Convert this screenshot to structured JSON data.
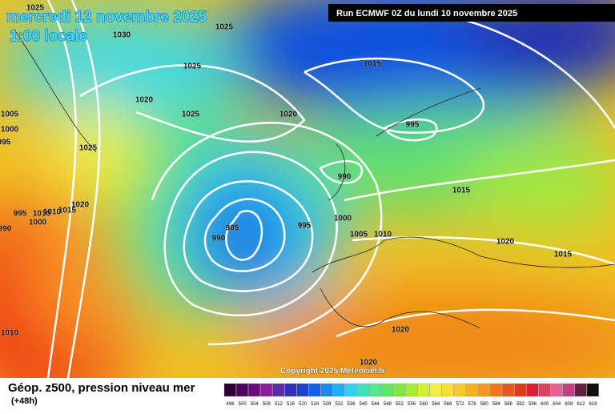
{
  "map": {
    "title_date": "mercredi 12 novembre 2025",
    "title_time": "1:00 locale",
    "run": "Run ECMWF 0Z du lundi 10 novembre 2025",
    "copyright": "Copyright 2025 Meteociel.fr",
    "caption": "Géop. z500, pression niveau mer",
    "lead": "(+48h)",
    "isobar_labels": [
      "1025",
      "1030",
      "1025",
      "1025",
      "1015",
      "1020",
      "1025",
      "1020",
      "1005",
      "1000",
      "995",
      "1025",
      "995",
      "990",
      "1015",
      "1020",
      "995",
      "1010",
      "1010",
      "1015",
      "1000",
      "990",
      "985",
      "990",
      "995",
      "1000",
      "1005",
      "1010",
      "1020",
      "1015",
      "1020",
      "1010",
      "1020"
    ],
    "scale": {
      "labels": [
        496,
        500,
        504,
        508,
        512,
        516,
        520,
        524,
        528,
        532,
        536,
        540,
        544,
        548,
        552,
        556,
        560,
        564,
        568,
        572,
        576,
        580,
        584,
        588,
        592,
        596,
        600,
        604,
        608,
        612,
        616
      ],
      "colors": [
        "#2a0033",
        "#4b0060",
        "#6a0a80",
        "#8a1aa0",
        "#5a2aa8",
        "#3030b8",
        "#2040d0",
        "#1060e8",
        "#1a8af0",
        "#20b0f8",
        "#30d0f0",
        "#40e0c0",
        "#50e890",
        "#60e860",
        "#80e840",
        "#a8ec30",
        "#d0f030",
        "#f0f040",
        "#f8e030",
        "#f8c828",
        "#f8b020",
        "#f89820",
        "#f07818",
        "#e85818",
        "#e03a18",
        "#d82030",
        "#e04060",
        "#e86090",
        "#c04080",
        "#602040",
        "#101010"
      ]
    }
  }
}
